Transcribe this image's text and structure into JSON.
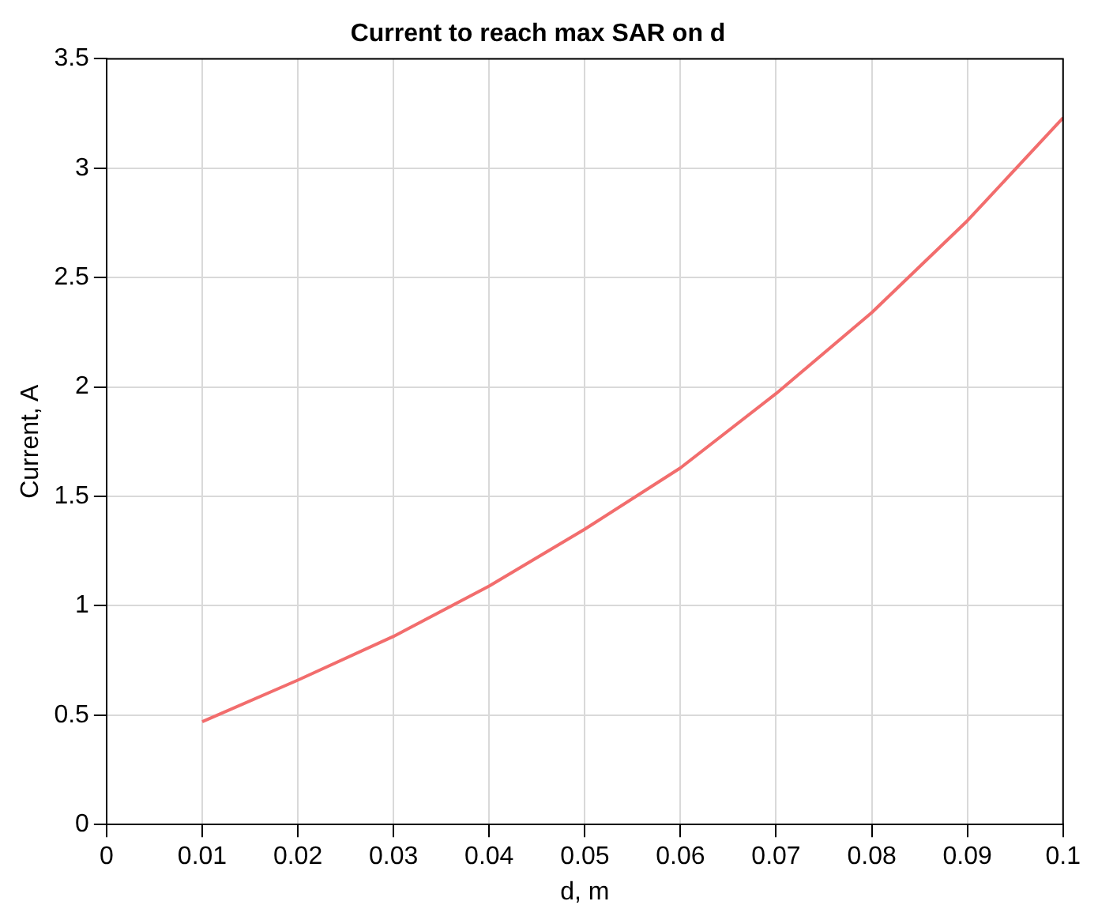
{
  "chart_data": {
    "type": "line",
    "title": "Current to reach max SAR on d",
    "xlabel": "d, m",
    "ylabel": "Current, A",
    "x": [
      0.01,
      0.02,
      0.03,
      0.04,
      0.05,
      0.06,
      0.07,
      0.08,
      0.09,
      0.1
    ],
    "series": [
      {
        "color": "#f26d6d",
        "values": [
          0.47,
          0.66,
          0.86,
          1.09,
          1.35,
          1.63,
          1.97,
          2.34,
          2.76,
          3.23
        ]
      }
    ],
    "xlim": [
      0,
      0.1
    ],
    "xticks": [
      0,
      0.01,
      0.02,
      0.03,
      0.04,
      0.05,
      0.06,
      0.07,
      0.08,
      0.09,
      0.1
    ],
    "ylim": [
      0,
      3.5
    ],
    "yticks": [
      0,
      0.5,
      1,
      1.5,
      2,
      2.5,
      3,
      3.5
    ],
    "grid": true,
    "legend": false,
    "marker": "none",
    "line_style": "solid"
  }
}
